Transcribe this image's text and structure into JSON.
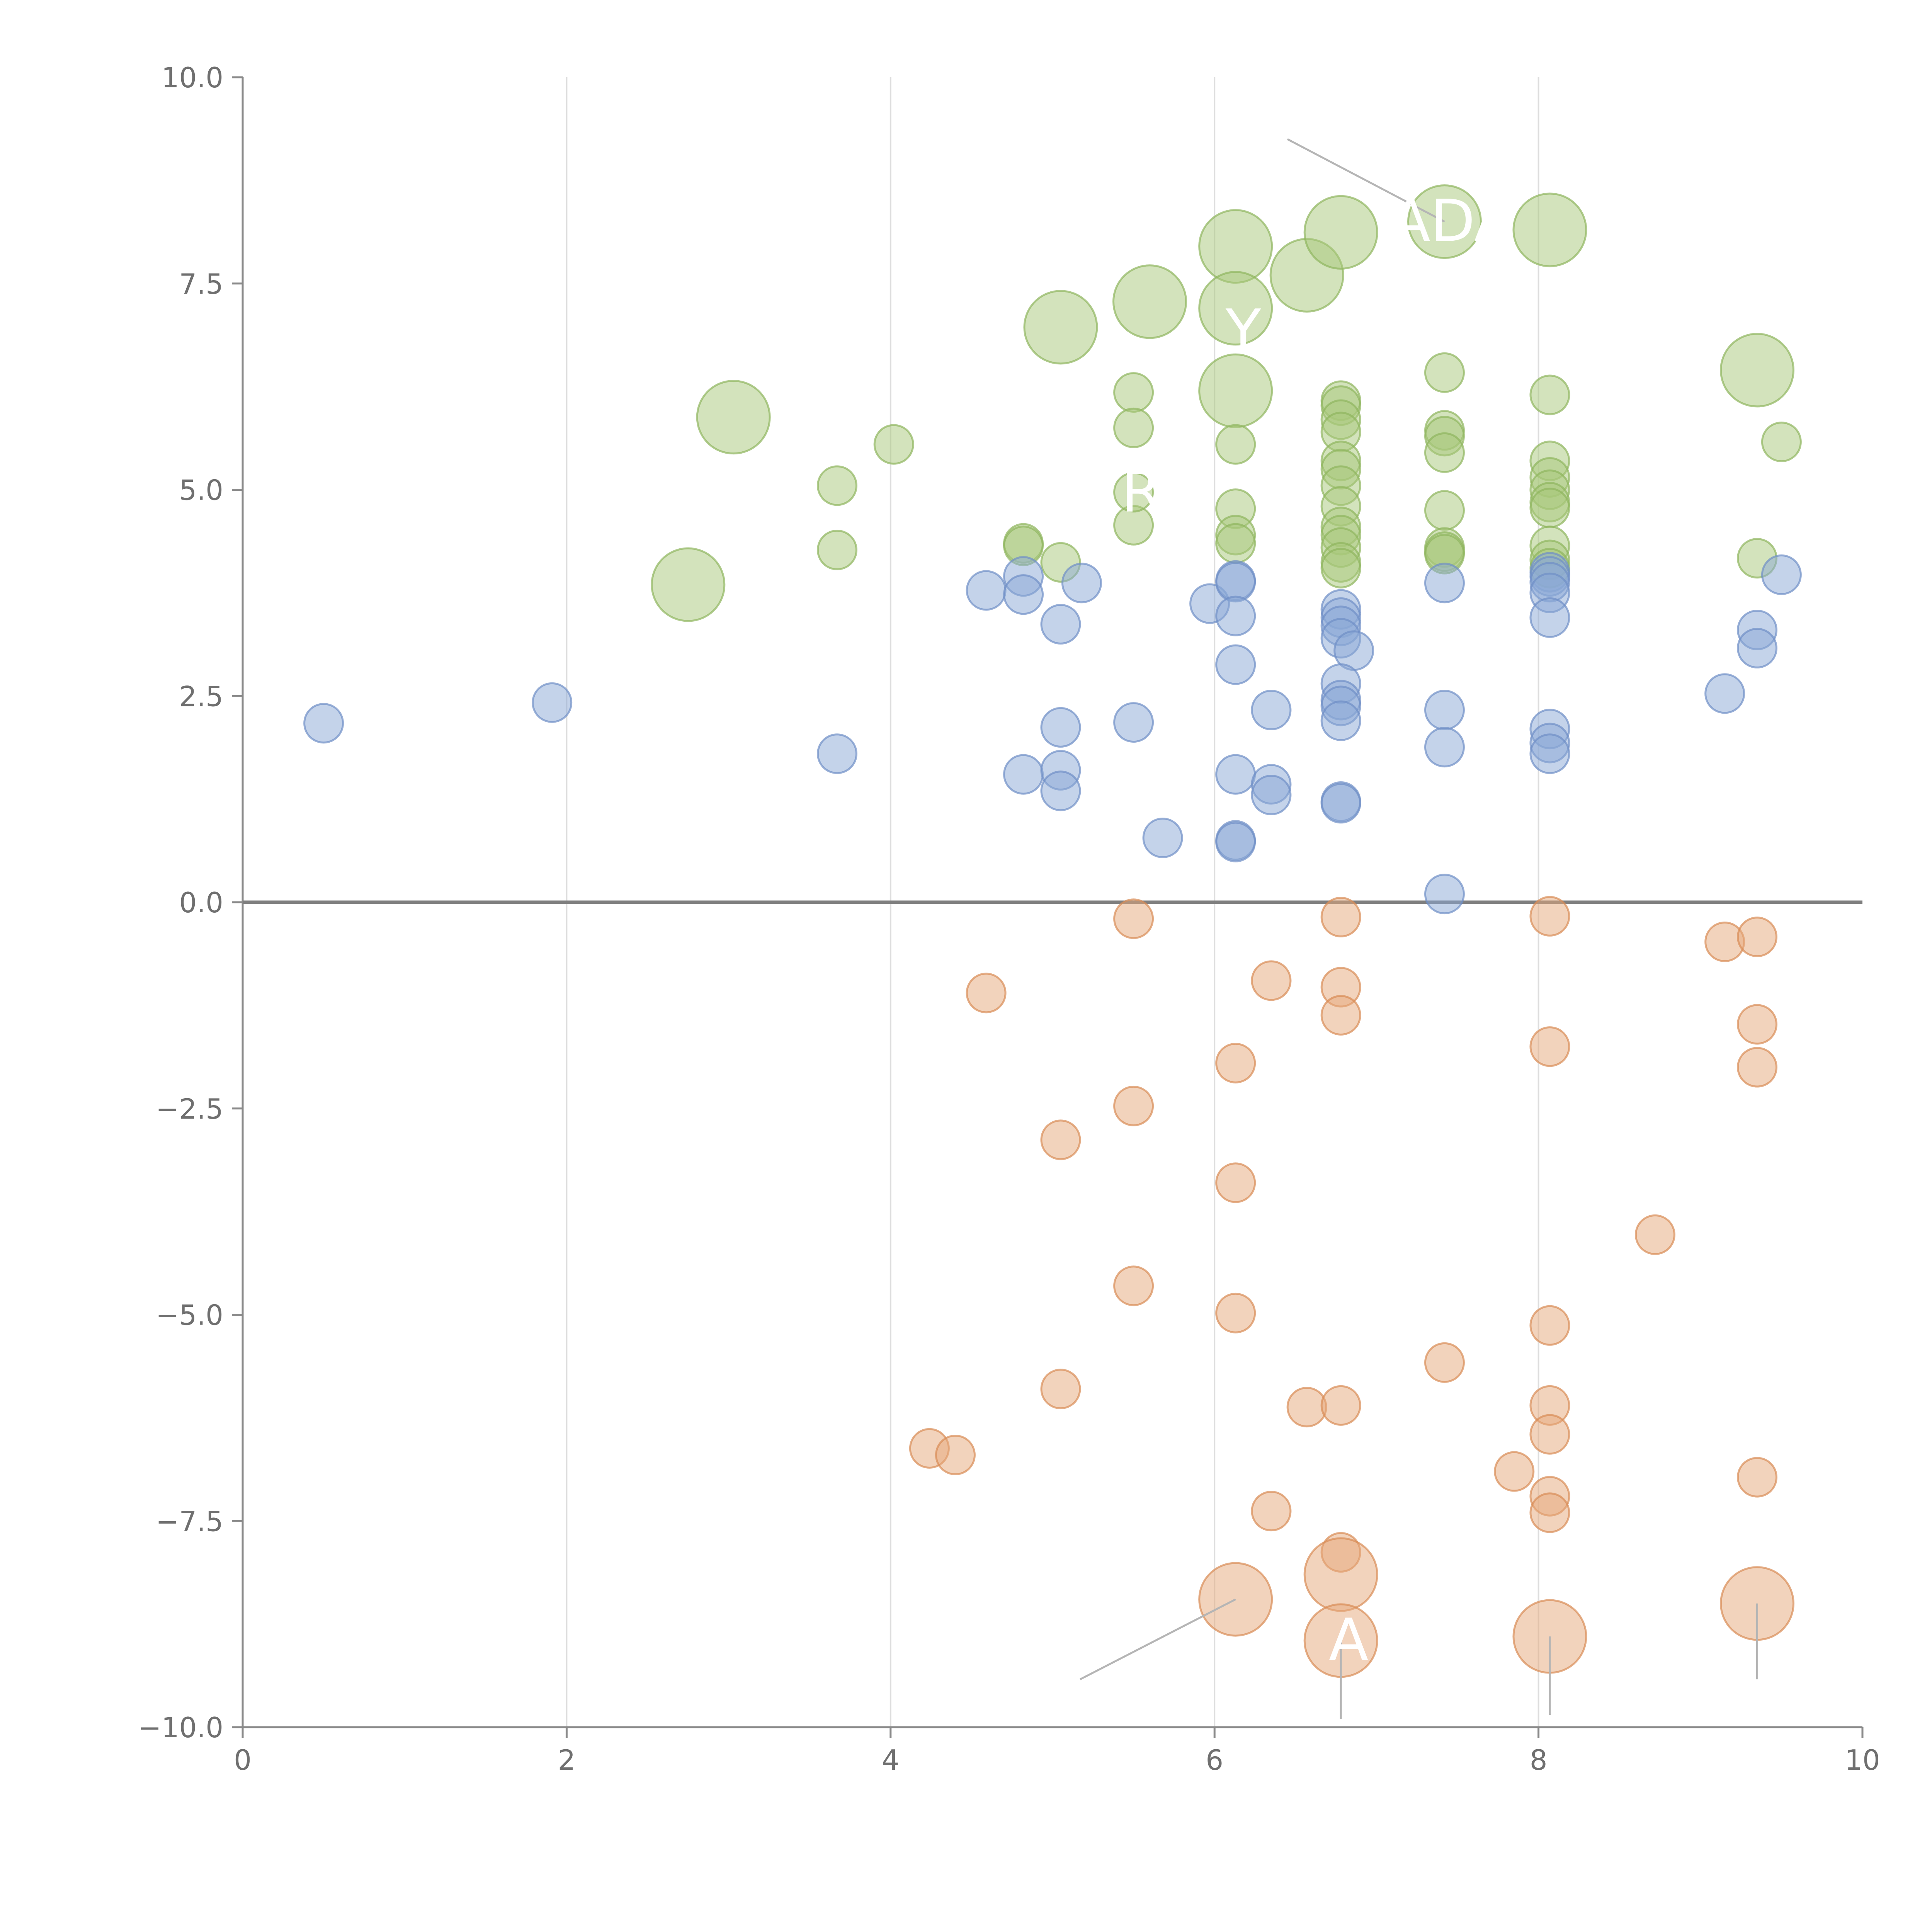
{
  "chart_data": {
    "type": "scatter",
    "title": "",
    "xlabel": "",
    "ylabel": "",
    "xlim": [
      0,
      10
    ],
    "ylim": [
      -10,
      10
    ],
    "x_ticks": [
      "0",
      "2",
      "4",
      "6",
      "8",
      "10"
    ],
    "y_ticks": [
      "10.0",
      "7.5",
      "5.0",
      "2.5",
      "0.0",
      "−2.5",
      "−5.0",
      "−7.5",
      "−10.0"
    ],
    "x_tick_values": [
      0,
      2,
      4,
      6,
      8,
      10
    ],
    "y_tick_values": [
      10,
      7.5,
      5,
      2.5,
      0,
      -2.5,
      -5,
      -7.5,
      -10
    ],
    "grid": "vertical",
    "reference_line_y": 0,
    "colors": {
      "green": "#a8c77a",
      "green_edge": "#8fb55e",
      "blue": "#8aa8d6",
      "blue_edge": "#6f8fc6",
      "orange": "#e6a87a",
      "orange_edge": "#d88c55"
    },
    "series": [
      {
        "name": "green",
        "color": "#a8c77a",
        "points": [
          [
            3.03,
            5.88,
            2.0
          ],
          [
            2.75,
            3.85,
            2.0
          ],
          [
            4.02,
            5.55,
            1.0
          ],
          [
            3.67,
            5.05,
            1.0
          ],
          [
            3.67,
            4.27,
            1.0
          ],
          [
            4.82,
            4.35,
            1.0
          ],
          [
            4.82,
            4.32,
            1.0
          ],
          [
            5.05,
            6.97,
            2.0
          ],
          [
            5.05,
            4.12,
            1.0
          ],
          [
            5.6,
            7.28,
            2.0
          ],
          [
            5.5,
            6.18,
            1.0
          ],
          [
            5.5,
            5.75,
            1.0
          ],
          [
            5.5,
            4.57,
            1.0
          ],
          [
            5.5,
            4.97,
            1.0
          ],
          [
            6.13,
            7.95,
            2.0
          ],
          [
            6.13,
            7.2,
            2.0
          ],
          [
            6.13,
            6.2,
            2.0
          ],
          [
            6.13,
            5.55,
            1.0
          ],
          [
            6.13,
            4.77,
            1.0
          ],
          [
            6.13,
            4.45,
            1.0
          ],
          [
            6.13,
            4.35,
            1.0
          ],
          [
            6.57,
            7.6,
            2.0
          ],
          [
            6.78,
            8.12,
            2.0
          ],
          [
            6.78,
            6.08,
            1.0
          ],
          [
            6.78,
            6.02,
            1.0
          ],
          [
            6.78,
            5.85,
            1.0
          ],
          [
            6.78,
            5.7,
            1.0
          ],
          [
            6.78,
            5.35,
            1.0
          ],
          [
            6.78,
            5.25,
            1.0
          ],
          [
            6.78,
            5.05,
            1.0
          ],
          [
            6.78,
            4.8,
            1.0
          ],
          [
            6.78,
            4.55,
            1.0
          ],
          [
            6.78,
            4.45,
            1.0
          ],
          [
            6.78,
            4.3,
            1.0
          ],
          [
            6.78,
            4.12,
            1.0
          ],
          [
            6.78,
            4.05,
            1.0
          ],
          [
            7.42,
            8.25,
            2.0
          ],
          [
            7.42,
            6.42,
            1.0
          ],
          [
            7.42,
            5.72,
            1.0
          ],
          [
            7.42,
            5.65,
            1.0
          ],
          [
            7.42,
            5.45,
            1.0
          ],
          [
            7.42,
            4.75,
            1.0
          ],
          [
            7.42,
            4.3,
            1.0
          ],
          [
            7.42,
            4.25,
            1.0
          ],
          [
            7.42,
            4.22,
            1.0
          ],
          [
            8.07,
            8.15,
            2.0
          ],
          [
            8.07,
            6.15,
            1.0
          ],
          [
            8.07,
            5.35,
            1.0
          ],
          [
            8.07,
            5.15,
            1.0
          ],
          [
            8.07,
            5.0,
            1.0
          ],
          [
            8.07,
            4.85,
            1.0
          ],
          [
            8.07,
            4.78,
            1.0
          ],
          [
            8.07,
            4.32,
            1.0
          ],
          [
            8.07,
            4.15,
            1.0
          ],
          [
            8.07,
            4.05,
            1.0
          ],
          [
            9.35,
            6.45,
            2.0
          ],
          [
            9.5,
            5.58,
            1.0
          ],
          [
            9.35,
            4.17,
            1.0
          ]
        ]
      },
      {
        "name": "blue",
        "color": "#8aa8d6",
        "points": [
          [
            0.5,
            2.17,
            1.0
          ],
          [
            1.91,
            2.42,
            1.0
          ],
          [
            3.67,
            1.8,
            1.0
          ],
          [
            4.59,
            3.78,
            1.0
          ],
          [
            4.82,
            3.95,
            1.0
          ],
          [
            4.82,
            3.73,
            1.0
          ],
          [
            4.82,
            1.55,
            1.0
          ],
          [
            5.05,
            3.37,
            1.0
          ],
          [
            5.05,
            2.12,
            1.0
          ],
          [
            5.05,
            1.6,
            1.0
          ],
          [
            5.05,
            1.35,
            1.0
          ],
          [
            5.18,
            3.87,
            1.0
          ],
          [
            5.5,
            2.18,
            1.0
          ],
          [
            5.68,
            0.78,
            1.0
          ],
          [
            5.97,
            3.62,
            1.0
          ],
          [
            6.13,
            3.9,
            1.0
          ],
          [
            6.13,
            3.88,
            1.0
          ],
          [
            6.13,
            3.47,
            1.0
          ],
          [
            6.13,
            2.88,
            1.0
          ],
          [
            6.13,
            1.55,
            1.0
          ],
          [
            6.13,
            0.75,
            1.0
          ],
          [
            6.13,
            0.73,
            1.0
          ],
          [
            6.35,
            2.33,
            1.0
          ],
          [
            6.35,
            1.43,
            1.0
          ],
          [
            6.35,
            1.3,
            1.0
          ],
          [
            6.78,
            3.55,
            1.0
          ],
          [
            6.78,
            3.45,
            1.0
          ],
          [
            6.78,
            3.35,
            1.0
          ],
          [
            6.78,
            3.2,
            1.0
          ],
          [
            6.86,
            3.05,
            1.0
          ],
          [
            6.78,
            2.65,
            1.0
          ],
          [
            6.78,
            2.45,
            1.0
          ],
          [
            6.78,
            2.38,
            1.0
          ],
          [
            6.78,
            2.2,
            1.0
          ],
          [
            6.78,
            1.22,
            1.0
          ],
          [
            6.78,
            1.2,
            1.0
          ],
          [
            7.42,
            3.87,
            1.0
          ],
          [
            7.42,
            2.33,
            1.0
          ],
          [
            7.42,
            1.88,
            1.0
          ],
          [
            7.42,
            0.1,
            1.0
          ],
          [
            8.07,
            4.0,
            1.0
          ],
          [
            8.07,
            3.95,
            1.0
          ],
          [
            8.07,
            3.88,
            1.0
          ],
          [
            8.07,
            3.75,
            1.0
          ],
          [
            8.07,
            3.45,
            1.0
          ],
          [
            8.07,
            2.1,
            1.0
          ],
          [
            8.07,
            1.93,
            1.0
          ],
          [
            8.07,
            1.8,
            1.0
          ],
          [
            9.15,
            2.53,
            1.0
          ],
          [
            9.35,
            3.3,
            1.0
          ],
          [
            9.35,
            3.08,
            1.0
          ],
          [
            9.5,
            3.97,
            1.0
          ]
        ]
      },
      {
        "name": "orange",
        "color": "#e6a87a",
        "points": [
          [
            4.24,
            -6.62,
            1.0
          ],
          [
            4.4,
            -6.7,
            1.0
          ],
          [
            4.59,
            -1.1,
            1.0
          ],
          [
            5.05,
            -2.88,
            1.0
          ],
          [
            5.05,
            -5.9,
            1.0
          ],
          [
            5.5,
            -0.2,
            1.0
          ],
          [
            5.5,
            -2.47,
            1.0
          ],
          [
            5.5,
            -4.65,
            1.0
          ],
          [
            6.13,
            -1.95,
            1.0
          ],
          [
            6.13,
            -3.4,
            1.0
          ],
          [
            6.13,
            -4.98,
            1.0
          ],
          [
            6.13,
            -8.45,
            2.0
          ],
          [
            6.35,
            -0.95,
            1.0
          ],
          [
            6.35,
            -7.38,
            1.0
          ],
          [
            6.57,
            -6.12,
            1.0
          ],
          [
            6.78,
            -0.18,
            1.0
          ],
          [
            6.78,
            -1.03,
            1.0
          ],
          [
            6.78,
            -1.37,
            1.0
          ],
          [
            6.78,
            -6.1,
            1.0
          ],
          [
            6.78,
            -7.88,
            1.0
          ],
          [
            6.78,
            -8.15,
            2.0
          ],
          [
            6.78,
            -8.95,
            2.0
          ],
          [
            7.42,
            -5.58,
            1.0
          ],
          [
            7.85,
            -6.9,
            1.0
          ],
          [
            8.07,
            -0.17,
            1.0
          ],
          [
            8.07,
            -1.75,
            1.0
          ],
          [
            8.07,
            -5.13,
            1.0
          ],
          [
            8.07,
            -6.1,
            1.0
          ],
          [
            8.07,
            -6.45,
            1.0
          ],
          [
            8.07,
            -7.2,
            1.0
          ],
          [
            8.07,
            -7.4,
            1.0
          ],
          [
            8.07,
            -8.9,
            2.0
          ],
          [
            8.72,
            -4.03,
            1.0
          ],
          [
            9.15,
            -0.48,
            1.0
          ],
          [
            9.35,
            -0.42,
            1.0
          ],
          [
            9.35,
            -1.48,
            1.0
          ],
          [
            9.35,
            -2.0,
            1.0
          ],
          [
            9.35,
            -6.97,
            1.0
          ],
          [
            9.35,
            -8.5,
            2.0
          ]
        ]
      }
    ],
    "annotations": [
      {
        "text": "ADA",
        "point": [
          7.42,
          8.25
        ],
        "leader_from": [
          6.45,
          9.25
        ]
      },
      {
        "text": "R",
        "point": [
          5.5,
          4.97
        ]
      },
      {
        "text": "A",
        "point": [
          6.78,
          -8.95
        ],
        "leader_from": [
          6.78,
          -9.9
        ]
      },
      {
        "text": "Y",
        "point": [
          6.13,
          6.92
        ]
      }
    ],
    "leader_lines": [
      {
        "from": [
          6.13,
          -8.45
        ],
        "to": [
          5.17,
          -9.42
        ]
      },
      {
        "from": [
          8.07,
          -8.9
        ],
        "to": [
          8.07,
          -9.85
        ]
      },
      {
        "from": [
          9.35,
          -8.5
        ],
        "to": [
          9.35,
          -9.42
        ]
      }
    ]
  }
}
